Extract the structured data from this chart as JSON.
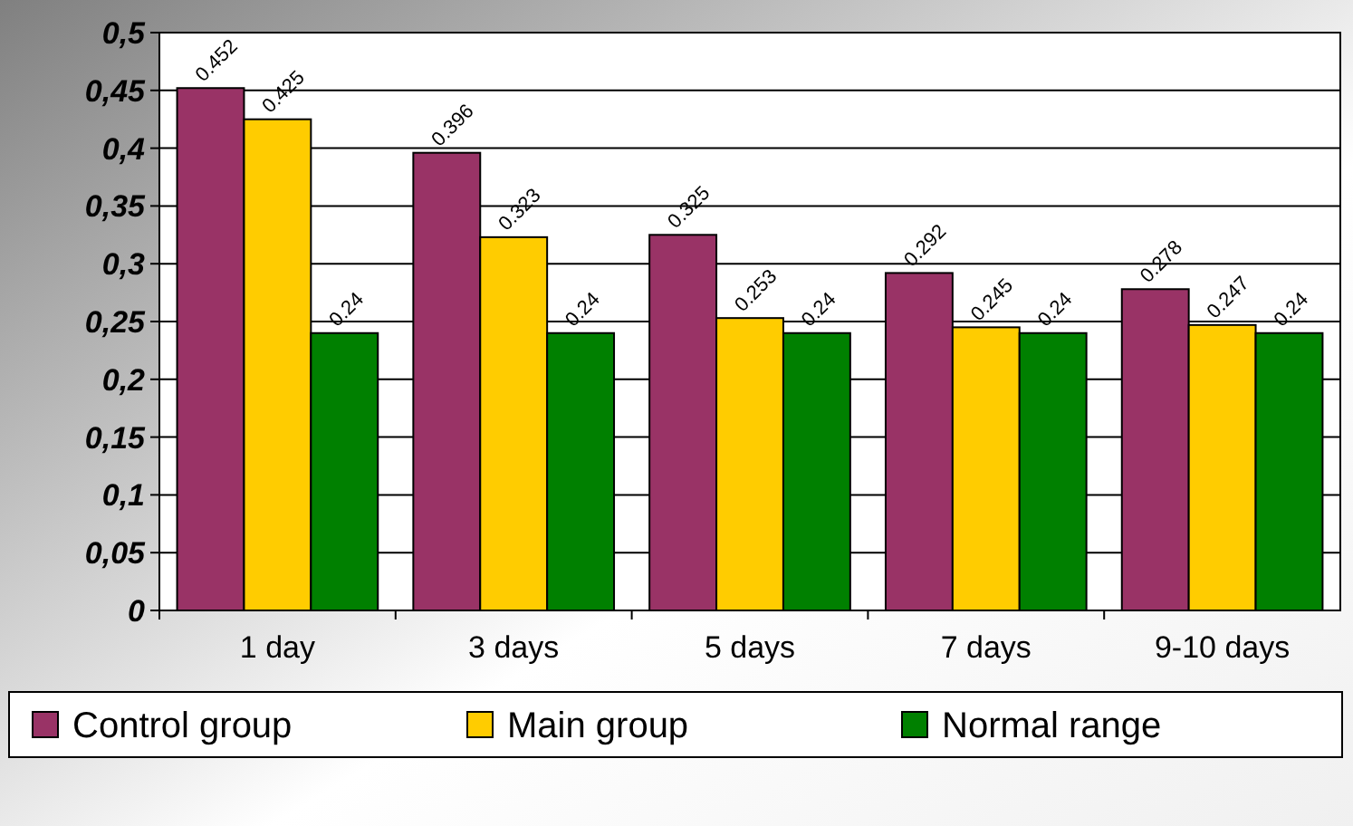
{
  "chart_data": {
    "type": "bar",
    "categories": [
      "1 day",
      "3 days",
      "5 days",
      "7 days",
      "9-10 days"
    ],
    "series": [
      {
        "name": "Control group",
        "color": "#993366",
        "values": [
          0.452,
          0.396,
          0.325,
          0.292,
          0.278
        ]
      },
      {
        "name": "Main group",
        "color": "#ffcc00",
        "values": [
          0.425,
          0.323,
          0.253,
          0.245,
          0.247
        ]
      },
      {
        "name": "Normal range",
        "color": "#008000",
        "values": [
          0.24,
          0.24,
          0.24,
          0.24,
          0.24
        ]
      }
    ],
    "ylim": [
      0,
      0.5
    ],
    "yticks": [
      {
        "value": 0,
        "label": "0"
      },
      {
        "value": 0.05,
        "label": "0,05"
      },
      {
        "value": 0.1,
        "label": "0,1"
      },
      {
        "value": 0.15,
        "label": "0,15"
      },
      {
        "value": 0.2,
        "label": "0,2"
      },
      {
        "value": 0.25,
        "label": "0,25"
      },
      {
        "value": 0.3,
        "label": "0,3"
      },
      {
        "value": 0.35,
        "label": "0,35"
      },
      {
        "value": 0.4,
        "label": "0,4"
      },
      {
        "value": 0.45,
        "label": "0,45"
      },
      {
        "value": 0.5,
        "label": "0,5"
      }
    ],
    "grid": "y",
    "legend": "bottom",
    "data_labels": true
  }
}
